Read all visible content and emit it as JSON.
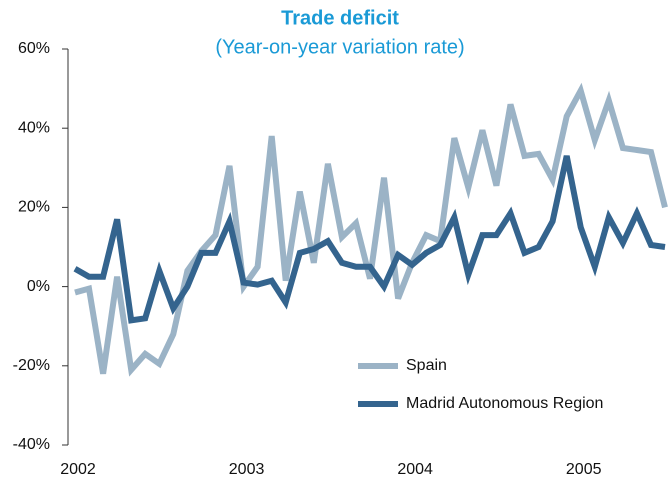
{
  "chart_data": {
    "type": "line",
    "title": "Trade deficit",
    "subtitle": "(Year-on-year variation rate)",
    "categories": [
      "2002",
      null,
      null,
      null,
      null,
      null,
      null,
      null,
      null,
      null,
      null,
      null,
      "2003",
      null,
      null,
      null,
      null,
      null,
      null,
      null,
      null,
      null,
      null,
      null,
      "2004",
      null,
      null,
      null,
      null,
      null,
      null,
      null,
      null,
      null,
      null,
      null,
      "2005",
      null,
      null,
      null,
      null,
      null,
      null
    ],
    "series": [
      {
        "name": "Spain",
        "color": "#9bb3c6",
        "values": [
          -1.5,
          -0.5,
          -22,
          2.5,
          -21,
          -17,
          -19.5,
          -12,
          4,
          9,
          13,
          30.5,
          0,
          5,
          38,
          1.5,
          24,
          6,
          31,
          12.5,
          16,
          2,
          27.5,
          -3,
          6,
          13,
          11.5,
          37.5,
          25,
          39.5,
          25.5,
          46,
          33,
          33.5,
          27,
          43,
          49.5,
          37,
          47,
          35,
          34.5,
          34,
          20
        ]
      },
      {
        "name": "Madrid Autonomous Region",
        "color": "#34648e",
        "values": [
          4.5,
          2.5,
          2.5,
          17,
          -8.5,
          -8,
          4,
          -5.5,
          0,
          8.5,
          8.5,
          16.5,
          1,
          0.5,
          1.5,
          -4,
          8.5,
          9.5,
          11.5,
          6,
          5,
          5,
          0,
          8,
          5.5,
          8.5,
          10.5,
          17.5,
          3,
          13,
          13,
          18.5,
          8.5,
          10,
          16.5,
          33,
          15,
          5,
          17.5,
          11,
          18.5,
          10.5,
          10
        ]
      }
    ],
    "ylim": [
      -40,
      60
    ],
    "yticks": [
      {
        "value": -40,
        "label": "-40%"
      },
      {
        "value": -20,
        "label": "-20%"
      },
      {
        "value": 0,
        "label": "0%"
      },
      {
        "value": 20,
        "label": "20%"
      },
      {
        "value": 40,
        "label": "40%"
      },
      {
        "value": 60,
        "label": "60%"
      }
    ],
    "grid": false,
    "legend": "lower right",
    "title_color": "#1a9ad6"
  }
}
